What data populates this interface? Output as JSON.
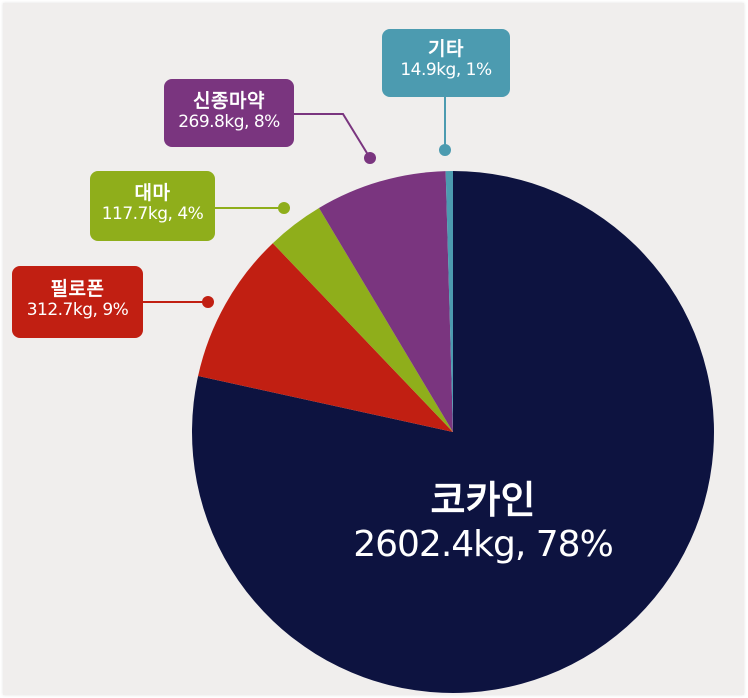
{
  "chart_data": {
    "type": "pie",
    "title": "",
    "unit": "kg",
    "categories": [
      "코카인",
      "필로폰",
      "대마",
      "신종마약",
      "기타"
    ],
    "values": [
      2602.4,
      312.7,
      117.7,
      269.8,
      14.9
    ],
    "percentages": [
      78,
      9,
      4,
      8,
      1
    ],
    "colors": [
      "#0d1340",
      "#c11f12",
      "#8fae1b",
      "#7a357f",
      "#4c9bb0"
    ],
    "start_angle_deg": 0,
    "direction": "clockwise",
    "legend": "callout labels"
  },
  "labels": {
    "cocaine": {
      "name": "코카인",
      "value": "2602.4kg, 78%"
    },
    "philopon": {
      "name": "필로폰",
      "value": "312.7kg, 9%"
    },
    "cannabis": {
      "name": "대마",
      "value": "117.7kg, 4%"
    },
    "new_drugs": {
      "name": "신종마약",
      "value": "269.8kg, 8%"
    },
    "other": {
      "name": "기타",
      "value": "14.9kg, 1%"
    }
  }
}
